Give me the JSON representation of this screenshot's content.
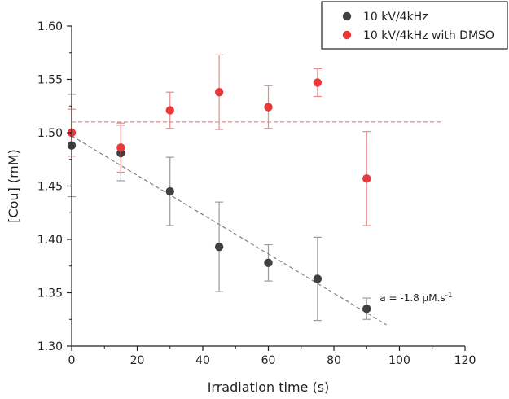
{
  "chart_data": {
    "type": "scatter",
    "xlabel": "Irradiation time (s)",
    "ylabel": "[Cou] (mM)",
    "xlim": [
      0,
      120
    ],
    "ylim": [
      1.3,
      1.6
    ],
    "xticks": [
      0,
      20,
      40,
      60,
      80,
      100,
      120
    ],
    "yticks": [
      1.3,
      1.35,
      1.4,
      1.45,
      1.5,
      1.55,
      1.6
    ],
    "xtick_labels": [
      "0",
      "20",
      "40",
      "60",
      "80",
      "100",
      "120"
    ],
    "ytick_labels": [
      "1.30",
      "1.35",
      "1.40",
      "1.45",
      "1.50",
      "1.55",
      "1.60"
    ],
    "grid": false,
    "legend_position": "top-right",
    "series": [
      {
        "name": "10 kV/4kHz",
        "color": "#404040",
        "x": [
          0,
          15,
          30,
          45,
          60,
          75,
          90
        ],
        "y": [
          1.488,
          1.481,
          1.445,
          1.393,
          1.378,
          1.363,
          1.335
        ],
        "err": [
          0.048,
          0.026,
          0.032,
          0.042,
          0.017,
          0.039,
          0.01
        ],
        "err_color": "#9a9a9a"
      },
      {
        "name": "10 kV/4kHz with DMSO",
        "color": "#e83a3a",
        "x": [
          0,
          15,
          30,
          45,
          60,
          75,
          90
        ],
        "y": [
          1.5,
          1.486,
          1.521,
          1.538,
          1.524,
          1.547,
          1.457
        ],
        "err": [
          0.022,
          0.023,
          0.017,
          0.035,
          0.02,
          0.013,
          0.044
        ],
        "err_color": "#e88a8a"
      }
    ],
    "reference_lines": [
      {
        "kind": "horizontal",
        "y": 1.51,
        "x_range": [
          0,
          113
        ],
        "color": "#e88a8a",
        "style": "dashed"
      },
      {
        "kind": "fit",
        "from": [
          0,
          1.497
        ],
        "to": [
          96,
          1.32
        ],
        "color": "#808080",
        "style": "dashed"
      }
    ],
    "annotations": [
      {
        "text": "a = -1.8 µM.s",
        "superscript": "-1",
        "x": 94,
        "y": 1.342
      }
    ]
  }
}
